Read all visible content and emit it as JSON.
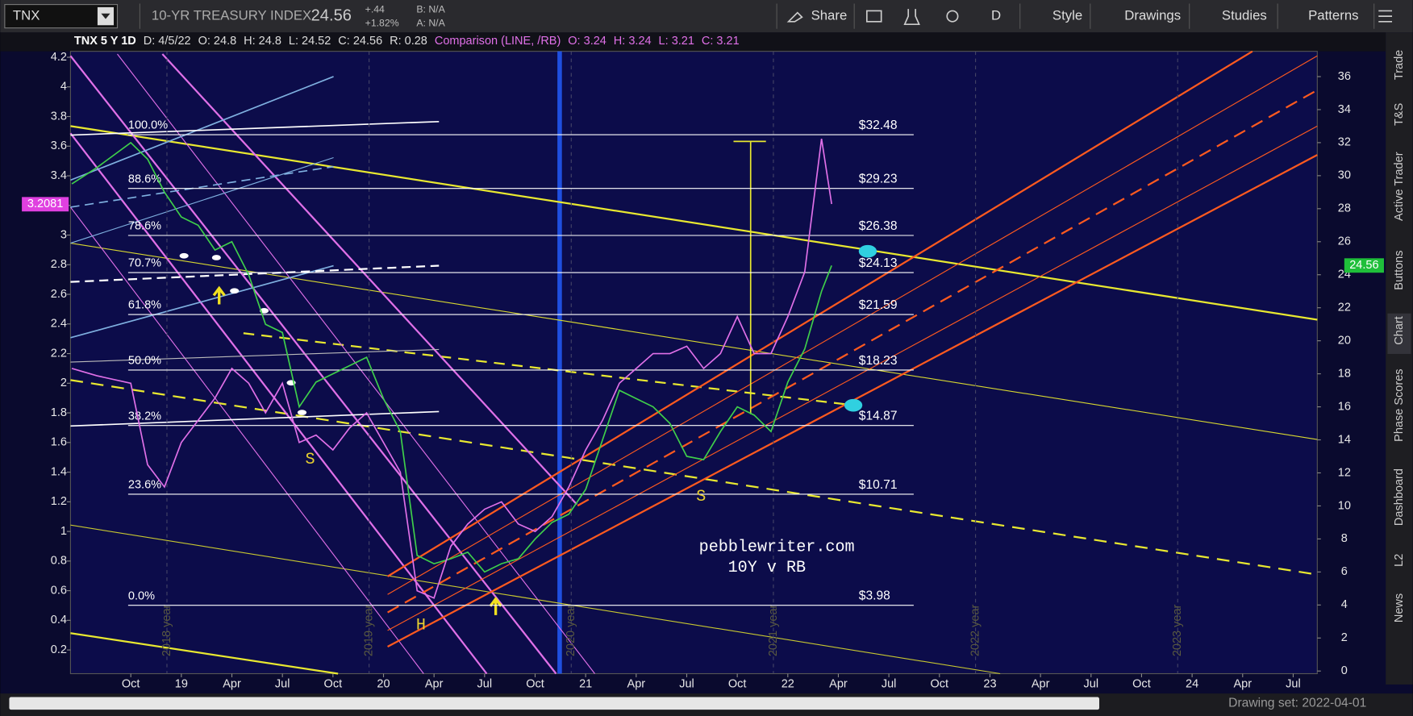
{
  "toolbar": {
    "symbol": "TNX",
    "description": "10-YR TREASURY INDEX",
    "last": "24.56",
    "change": "+.44",
    "change_pct": "+1.82%",
    "bid": "B: N/A",
    "ask": "A: N/A",
    "buttons": [
      "Share",
      "D",
      "Style",
      "Drawings",
      "Studies",
      "Patterns"
    ]
  },
  "info_bar": {
    "symbol": "TNX 5 Y 1D",
    "fields": [
      "D: 4/5/22",
      "O: 24.8",
      "H: 24.8",
      "L: 24.52",
      "C: 24.56",
      "R: 0.28"
    ],
    "comparison": "Comparison (LINE, /RB)",
    "comparison_fields": [
      "O: 3.24",
      "H: 3.24",
      "L: 3.21",
      "C: 3.21"
    ]
  },
  "chart_data": {
    "type": "line",
    "x": [
      5.5,
      7,
      9,
      10,
      11,
      12,
      13,
      14,
      15,
      16,
      17,
      18,
      19,
      20,
      21,
      22,
      23,
      24,
      25,
      26,
      27,
      28,
      29,
      30,
      31,
      32,
      33,
      34,
      35,
      36,
      37,
      38,
      39,
      40,
      41,
      42,
      43,
      44,
      45,
      46,
      47,
      48,
      49,
      50,
      50.6
    ],
    "series": [
      {
        "color": "#3fcf4a",
        "axis": "y2",
        "values": [
          29.5,
          30.5,
          32,
          31,
          29,
          27.5,
          27,
          25.5,
          26,
          24,
          21,
          20.5,
          16,
          17.5,
          18,
          18.5,
          19,
          16.5,
          14.5,
          7,
          6.5,
          6.8,
          7.2,
          6,
          6.5,
          6.8,
          8,
          9,
          9.5,
          11,
          14,
          17,
          16.5,
          16,
          15,
          13,
          12.8,
          14.5,
          16,
          15.5,
          14.5,
          17.5,
          19.5,
          23,
          24.56
        ]
      },
      {
        "color": "#e070e8",
        "values": [
          2.1,
          2.05,
          2.0,
          1.45,
          1.3,
          1.6,
          1.75,
          1.9,
          2.1,
          2.0,
          1.8,
          2.0,
          1.6,
          1.65,
          1.55,
          1.7,
          1.8,
          1.6,
          1.4,
          0.6,
          0.55,
          0.9,
          1.05,
          1.15,
          1.2,
          1.05,
          1.0,
          1.1,
          1.3,
          1.55,
          1.75,
          2.0,
          2.1,
          2.2,
          2.2,
          2.25,
          2.1,
          2.2,
          2.45,
          2.2,
          2.2,
          2.45,
          2.75,
          3.65,
          3.21
        ]
      }
    ],
    "xlim": [
      5.42,
      79.43
    ],
    "xticks": [
      {
        "value": 9,
        "label": "Oct"
      },
      {
        "value": 12,
        "label": "19"
      },
      {
        "value": 15,
        "label": "Apr"
      },
      {
        "value": 18,
        "label": "Jul"
      },
      {
        "value": 21,
        "label": "Oct"
      },
      {
        "value": 24,
        "label": "20"
      },
      {
        "value": 27,
        "label": "Apr"
      },
      {
        "value": 30,
        "label": "Jul"
      },
      {
        "value": 33,
        "label": "Oct"
      },
      {
        "value": 36,
        "label": "21"
      },
      {
        "value": 39,
        "label": "Apr"
      },
      {
        "value": 42,
        "label": "Jul"
      },
      {
        "value": 45,
        "label": "Oct"
      },
      {
        "value": 48,
        "label": "22"
      },
      {
        "value": 51,
        "label": "Apr"
      },
      {
        "value": 54,
        "label": "Jul"
      },
      {
        "value": 57,
        "label": "Oct"
      },
      {
        "value": 60,
        "label": "23"
      },
      {
        "value": 63,
        "label": "Apr"
      },
      {
        "value": 66,
        "label": "Jul"
      },
      {
        "value": 69,
        "label": "Oct"
      },
      {
        "value": 72,
        "label": "24"
      },
      {
        "value": 75,
        "label": "Apr"
      },
      {
        "value": 78,
        "label": "Jul"
      }
    ],
    "ylim": [
      0.04,
      4.24
    ],
    "yticks": [
      0.2,
      0.4,
      0.6,
      0.8,
      1,
      1.2,
      1.4,
      1.6,
      1.8,
      2,
      2.2,
      2.4,
      2.6,
      2.8,
      3,
      3.2,
      3.4,
      3.6,
      3.8,
      4,
      4.2
    ],
    "y2lim": [
      -0.16,
      37.53
    ],
    "y2ticks": [
      0,
      2,
      4,
      6,
      8,
      10,
      12,
      14,
      16,
      18,
      20,
      22,
      24,
      26,
      28,
      30,
      32,
      34,
      36
    ],
    "grid": false,
    "last_tags": {
      "y": 3.2081,
      "y2": 24.56
    },
    "year_labels": [
      "2018 year",
      "2019 year",
      "2020 year",
      "2021 year",
      "2022 year",
      "2023 year"
    ],
    "retracements": [
      {
        "percent": {
          "value": 100,
          "label": "100.0%"
        },
        "price": {
          "value": 32.48,
          "label": "$32.48"
        }
      },
      {
        "percent": {
          "value": 88.6,
          "label": "88.6%"
        },
        "price": {
          "value": 29.23,
          "label": "$29.23"
        }
      },
      {
        "percent": {
          "value": 78.6,
          "label": "78.6%"
        },
        "price": {
          "value": 26.38,
          "label": "$26.38"
        }
      },
      {
        "percent": {
          "value": 70.7,
          "label": "70.7%"
        },
        "price": {
          "value": 24.13,
          "label": "$24.13"
        }
      },
      {
        "percent": {
          "value": 61.8,
          "label": "61.8%"
        },
        "price": {
          "value": 21.59,
          "label": "$21.59"
        }
      },
      {
        "percent": {
          "value": 50,
          "label": "50.0%"
        },
        "price": {
          "value": 18.23,
          "label": "$18.23"
        }
      },
      {
        "percent": {
          "value": 38.2,
          "label": "38.2%"
        },
        "price": {
          "value": 14.87,
          "label": "$14.87"
        }
      },
      {
        "percent": {
          "value": 23.6,
          "label": "23.6%"
        },
        "price": {
          "value": 10.71,
          "label": "$10.71"
        }
      },
      {
        "percent": {
          "value": 0,
          "label": "0.0%"
        },
        "price": {
          "value": 3.98,
          "label": "$3.98"
        }
      }
    ],
    "annotations": [
      "S",
      "S",
      "H",
      "pebblewriter.com",
      "10Y v RB"
    ]
  },
  "side_tabs": [
    "Trade",
    "T&S",
    "Active Trader",
    "Buttons",
    "Chart",
    "Phase Scores",
    "Dashboard",
    "L2",
    "News"
  ],
  "footer": {
    "drawing_set": "Drawing set: 2022-04-01"
  }
}
